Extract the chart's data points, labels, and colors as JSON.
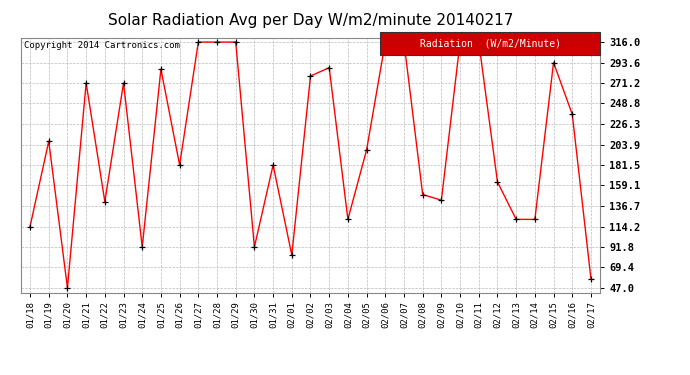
{
  "title": "Solar Radiation Avg per Day W/m2/minute 20140217",
  "copyright": "Copyright 2014 Cartronics.com",
  "legend_label": "Radiation  (W/m2/Minute)",
  "dates": [
    "01/18",
    "01/19",
    "01/20",
    "01/21",
    "01/22",
    "01/23",
    "01/24",
    "01/25",
    "01/26",
    "01/27",
    "01/28",
    "01/29",
    "01/30",
    "01/31",
    "02/01",
    "02/02",
    "02/03",
    "02/04",
    "02/05",
    "02/06",
    "02/07",
    "02/08",
    "02/09",
    "02/10",
    "02/11",
    "02/12",
    "02/13",
    "02/14",
    "02/15",
    "02/16",
    "02/17"
  ],
  "values": [
    114.2,
    207.5,
    47.0,
    271.2,
    141.5,
    271.2,
    91.8,
    286.4,
    181.5,
    316.0,
    316.0,
    316.0,
    91.8,
    181.5,
    83.0,
    278.8,
    288.0,
    122.0,
    198.0,
    316.0,
    316.0,
    149.2,
    143.0,
    316.0,
    316.0,
    163.0,
    122.0,
    122.0,
    293.6,
    237.0,
    57.0
  ],
  "ylim_min": 42.0,
  "ylim_max": 321.0,
  "yticks": [
    47.0,
    69.4,
    91.8,
    114.2,
    136.7,
    159.1,
    181.5,
    203.9,
    226.3,
    248.8,
    271.2,
    293.6,
    316.0
  ],
  "line_color": "#ff0000",
  "marker_color": "#000000",
  "grid_color": "#bbbbbb",
  "bg_color": "#ffffff",
  "title_fontsize": 11,
  "legend_bg_color": "#cc0000",
  "legend_text_color": "#ffffff",
  "copyright_color": "#000000"
}
